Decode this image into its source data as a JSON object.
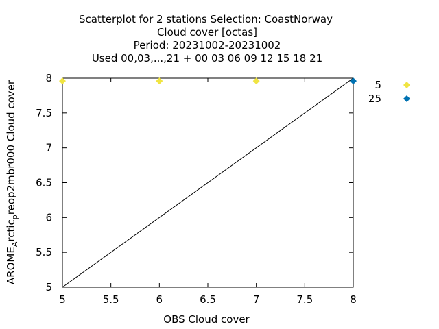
{
  "chart_data": {
    "type": "scatter",
    "title_lines": [
      "Scatterplot for    2 stations Selection: CoastNorway",
      "Cloud cover [octas]",
      "Period: 20231002-20231002",
      "Used  00,03,...,21  + 00 03 06 09 12 15 18 21"
    ],
    "xlabel": "OBS Cloud cover",
    "ylabel_parts": {
      "main": "AROME",
      "sub1": "A",
      "mid": "rctic",
      "sub2": "p",
      "tail": "reop2mbr000 Cloud cover"
    },
    "xlim": [
      5,
      8
    ],
    "ylim": [
      5,
      8
    ],
    "xticks": [
      "5",
      "5.5",
      "6",
      "6.5",
      "7",
      "7.5",
      "8"
    ],
    "yticks": [
      "5",
      "5.5",
      "6",
      "6.5",
      "7",
      "7.5",
      "8"
    ],
    "diagonal": true,
    "grid": false,
    "legend_position": "right",
    "series": [
      {
        "name": "5",
        "color": "#f0e442",
        "marker": "diamond",
        "points": [
          [
            5,
            7.96
          ],
          [
            6,
            7.96
          ],
          [
            7,
            7.96
          ]
        ]
      },
      {
        "name": "25",
        "color": "#0072b2",
        "marker": "diamond",
        "points": [
          [
            8,
            7.96
          ]
        ]
      }
    ]
  }
}
